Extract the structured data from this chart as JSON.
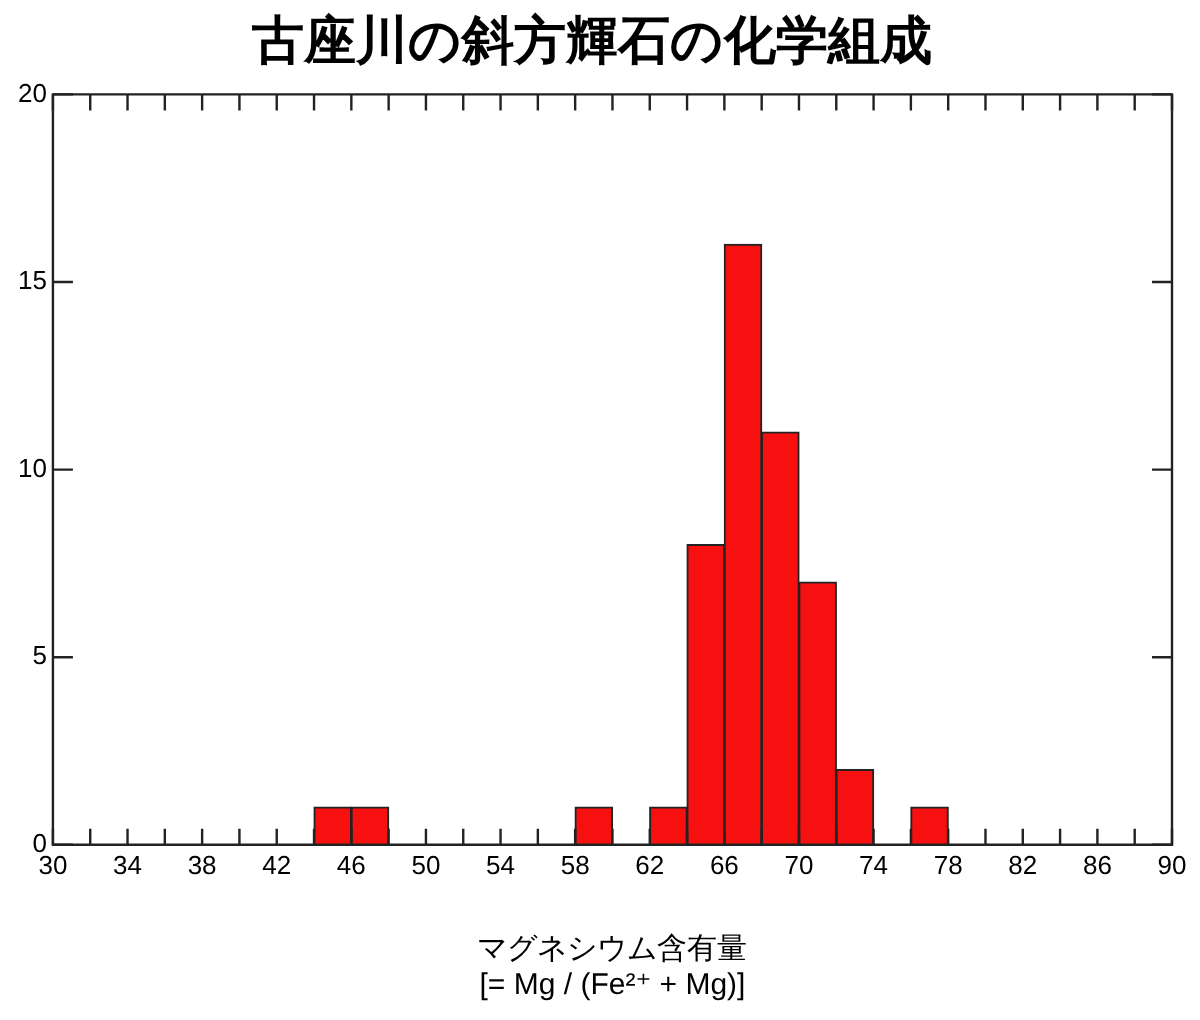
{
  "chart_data": {
    "type": "histogram",
    "title": "古座川の斜方輝石の化学組成",
    "xlabel": "マグネシウム含有量\n[= Mg / (Fe²⁺ + Mg)]",
    "bins": [
      30,
      32,
      34,
      36,
      38,
      40,
      42,
      44,
      46,
      48,
      50,
      52,
      54,
      56,
      58,
      60,
      62,
      64,
      66,
      68,
      70,
      72,
      74,
      76,
      78,
      80,
      82,
      84,
      86,
      88,
      90
    ],
    "values": [
      0,
      0,
      0,
      0,
      0,
      0,
      0,
      1,
      1,
      0,
      0,
      0,
      0,
      0,
      1,
      0,
      1,
      8,
      16,
      11,
      7,
      2,
      0,
      1,
      0,
      0,
      0,
      0,
      0,
      0
    ],
    "color": "#f71010",
    "xlim": [
      30,
      90
    ],
    "xticks": [
      30,
      {
        "value": 32,
        "label": null
      },
      34,
      {
        "value": 36,
        "label": null
      },
      38,
      {
        "value": 40,
        "label": null
      },
      42,
      {
        "value": 44,
        "label": null
      },
      46,
      {
        "value": 48,
        "label": null
      },
      50,
      {
        "value": 52,
        "label": null
      },
      54,
      {
        "value": 56,
        "label": null
      },
      58,
      {
        "value": 60,
        "label": null
      },
      62,
      {
        "value": 64,
        "label": null
      },
      66,
      {
        "value": 68,
        "label": null
      },
      70,
      {
        "value": 72,
        "label": null
      },
      74,
      {
        "value": 76,
        "label": null
      },
      78,
      {
        "value": 80,
        "label": null
      },
      82,
      {
        "value": 84,
        "label": null
      },
      86,
      {
        "value": 88,
        "label": null
      },
      90
    ],
    "ylim": [
      0,
      20
    ],
    "yticks": [
      0,
      5,
      10,
      15,
      20
    ],
    "grid": false,
    "legend": false
  }
}
